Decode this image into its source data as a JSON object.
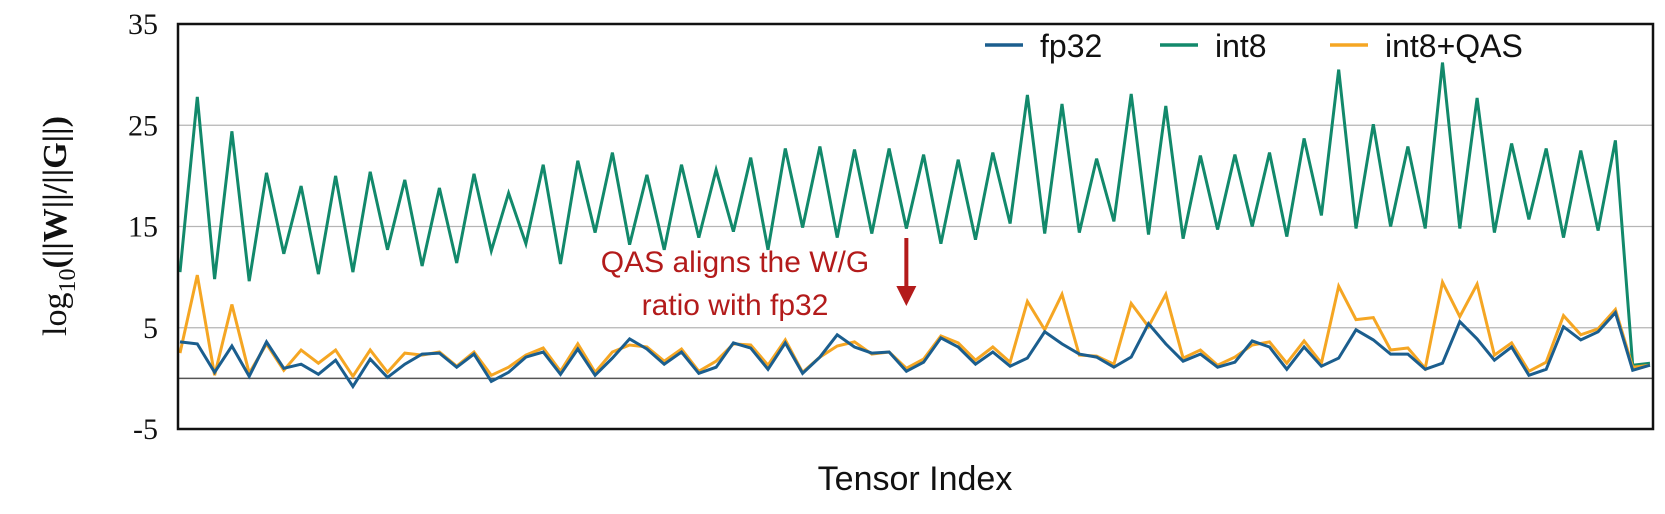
{
  "chart_data": {
    "type": "line",
    "xlabel": "Tensor Index",
    "ylabel_prefix": "log",
    "ylabel_sub": "10",
    "ylabel_suffix": "(||W||/||G||)",
    "ylim": [
      -5,
      35
    ],
    "yticks": [
      "-5",
      "5",
      "15",
      "25",
      "35"
    ],
    "grid": "horizontal",
    "legend_position": "top-right",
    "annotation": {
      "lines": [
        "QAS aligns the W/G",
        "ratio with fp32"
      ],
      "arrow_target_index": 42,
      "color": "#b31b1b"
    },
    "series": [
      {
        "name": "fp32",
        "color": "#1b5e8e",
        "values": [
          3.6,
          3.4,
          0.6,
          3.2,
          0.2,
          3.6,
          1.0,
          1.4,
          0.4,
          1.8,
          -0.8,
          1.9,
          0.1,
          1.4,
          2.4,
          2.5,
          1.1,
          2.4,
          -0.3,
          0.6,
          2.1,
          2.6,
          0.4,
          2.9,
          0.3,
          2.0,
          3.9,
          2.9,
          1.4,
          2.6,
          0.5,
          1.1,
          3.5,
          3.0,
          0.9,
          3.5,
          0.5,
          2.1,
          4.3,
          3.1,
          2.5,
          2.6,
          0.7,
          1.6,
          4.0,
          3.1,
          1.4,
          2.6,
          1.2,
          2.0,
          4.6,
          3.4,
          2.4,
          2.1,
          1.1,
          2.1,
          5.4,
          3.4,
          1.7,
          2.4,
          1.1,
          1.6,
          3.7,
          3.1,
          0.9,
          3.1,
          1.2,
          2.0,
          4.8,
          3.8,
          2.4,
          2.4,
          0.9,
          1.5,
          5.6,
          3.9,
          1.8,
          3.1,
          0.3,
          0.9,
          5.1,
          3.8,
          4.6,
          6.5,
          0.8,
          1.3
        ]
      },
      {
        "name": "int8",
        "color": "#12896b",
        "values": [
          10.5,
          27.8,
          9.8,
          24.4,
          9.6,
          20.3,
          12.3,
          19.0,
          10.3,
          20.0,
          10.5,
          20.4,
          12.7,
          19.6,
          11.1,
          18.8,
          11.4,
          20.2,
          12.6,
          18.3,
          13.3,
          21.1,
          11.3,
          21.5,
          14.4,
          22.3,
          13.2,
          20.1,
          12.7,
          21.1,
          13.9,
          20.6,
          14.5,
          21.8,
          12.7,
          22.7,
          14.9,
          22.9,
          13.9,
          22.6,
          14.3,
          22.7,
          14.8,
          22.1,
          13.3,
          21.6,
          13.7,
          22.3,
          15.3,
          28.0,
          14.3,
          27.1,
          14.4,
          21.7,
          15.5,
          28.1,
          14.2,
          26.9,
          13.8,
          22.0,
          14.7,
          22.1,
          15.0,
          22.3,
          14.0,
          23.7,
          16.1,
          30.5,
          14.8,
          25.1,
          15.0,
          22.9,
          14.8,
          31.2,
          14.8,
          27.7,
          14.4,
          23.2,
          15.7,
          22.7,
          13.9,
          22.5,
          14.6,
          23.5,
          1.3,
          1.5
        ]
      },
      {
        "name": "int8+QAS",
        "color": "#f5a623",
        "values": [
          2.5,
          10.2,
          0.3,
          7.3,
          0.5,
          3.4,
          0.8,
          2.8,
          1.5,
          2.8,
          0.2,
          2.8,
          0.6,
          2.5,
          2.3,
          2.6,
          1.2,
          2.6,
          0.3,
          1.1,
          2.3,
          3.0,
          0.7,
          3.4,
          0.6,
          2.6,
          3.3,
          3.1,
          1.7,
          2.9,
          0.7,
          1.7,
          3.4,
          3.3,
          1.3,
          3.8,
          0.6,
          2.1,
          3.2,
          3.6,
          2.4,
          2.6,
          1.0,
          1.9,
          4.2,
          3.5,
          1.8,
          3.1,
          1.6,
          7.6,
          4.8,
          8.3,
          2.3,
          2.2,
          1.4,
          7.4,
          5.1,
          8.3,
          2.0,
          2.8,
          1.3,
          2.1,
          3.3,
          3.6,
          1.5,
          3.7,
          1.5,
          9.1,
          5.8,
          6.0,
          2.8,
          3.0,
          1.0,
          9.5,
          6.1,
          9.3,
          2.3,
          3.5,
          0.7,
          1.6,
          6.2,
          4.3,
          4.9,
          6.8,
          1.1,
          1.3
        ]
      }
    ]
  }
}
